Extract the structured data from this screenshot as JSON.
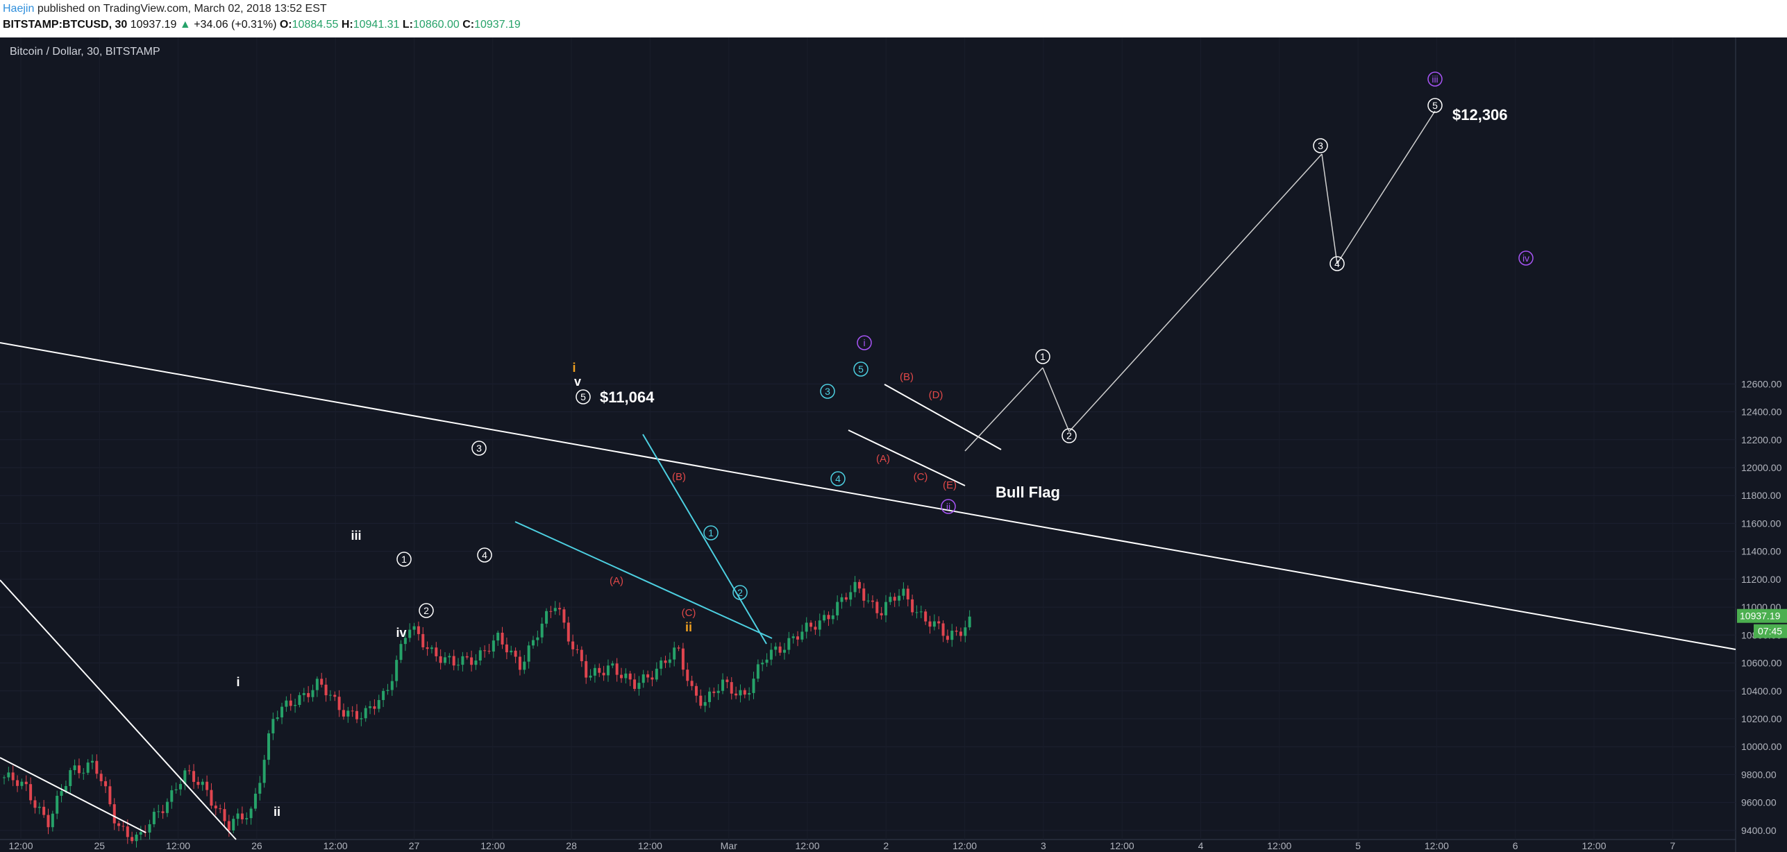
{
  "header": {
    "author": "Haejin",
    "published_text": "published on TradingView.com, March 02, 2018 13:52 EST",
    "symbol": "BITSTAMP:BTCUSD, 30",
    "last": "10937.19",
    "change_arrow": "▲",
    "change": "+34.06 (+0.31%)",
    "open_label": "O:",
    "open": "10884.55",
    "high_label": "H:",
    "high": "10941.31",
    "low_label": "L:",
    "low": "10860.00",
    "close_label": "C:",
    "close": "10937.19"
  },
  "chart_data": {
    "type": "candlestick",
    "title": "Bitcoin / Dollar, 30, BITSTAMP",
    "y_axis": {
      "ticks": [
        "12600.00",
        "12400.00",
        "12200.00",
        "12000.00",
        "11800.00",
        "11600.00",
        "11400.00",
        "11200.00",
        "11000.00",
        "10800.00",
        "10600.00",
        "10400.00",
        "10200.00",
        "10000.00",
        "9800.00",
        "9600.00",
        "9400.00"
      ],
      "range": [
        9270,
        12710
      ]
    },
    "x_axis": {
      "ticks": [
        "12:00",
        "25",
        "12:00",
        "26",
        "12:00",
        "27",
        "12:00",
        "28",
        "12:00",
        "Mar",
        "12:00",
        "2",
        "12:00",
        "3",
        "12:00",
        "4",
        "12:00",
        "5",
        "12:00",
        "6",
        "12:00",
        "7"
      ]
    },
    "last_price": "10937.19",
    "countdown": "07:45",
    "price_path": [
      [
        0,
        9780
      ],
      [
        0.5,
        9700
      ],
      [
        1,
        9450
      ],
      [
        1.5,
        9840
      ],
      [
        2,
        9880
      ],
      [
        2.5,
        9450
      ],
      [
        3,
        9330
      ],
      [
        3.5,
        9560
      ],
      [
        4,
        9800
      ],
      [
        4.5,
        9700
      ],
      [
        5,
        9420
      ],
      [
        5.5,
        9540
      ],
      [
        6,
        10200
      ],
      [
        6.5,
        10350
      ],
      [
        7,
        10440
      ],
      [
        7.5,
        10280
      ],
      [
        8,
        10200
      ],
      [
        8.5,
        10400
      ],
      [
        9,
        10850
      ],
      [
        9.5,
        10700
      ],
      [
        10,
        10580
      ],
      [
        10.5,
        10650
      ],
      [
        11,
        10760
      ],
      [
        11.5,
        10600
      ],
      [
        12,
        10870
      ],
      [
        12.3,
        11050
      ],
      [
        12.5,
        10850
      ],
      [
        13,
        10480
      ],
      [
        13.5,
        10600
      ],
      [
        14,
        10420
      ],
      [
        14.5,
        10560
      ],
      [
        15,
        10680
      ],
      [
        15.3,
        10420
      ],
      [
        15.6,
        10320
      ],
      [
        16,
        10440
      ],
      [
        16.5,
        10380
      ],
      [
        17,
        10650
      ],
      [
        17.5,
        10770
      ],
      [
        18,
        10850
      ],
      [
        18.5,
        11000
      ],
      [
        19,
        11140
      ],
      [
        19.5,
        10970
      ],
      [
        20,
        11100
      ],
      [
        20.5,
        10920
      ],
      [
        21,
        10780
      ],
      [
        21.5,
        10900
      ]
    ],
    "annotations": {
      "price_targets": [
        "$11,064",
        "$12,306"
      ],
      "pattern_label": "Bull Flag",
      "wave_labels_white": [
        "i",
        "ii",
        "iii",
        "iv",
        "v"
      ],
      "wave_labels_orange": [
        "i",
        "ii"
      ],
      "wave_labels_purple": [
        "i",
        "ii",
        "iii",
        "iv"
      ],
      "circled_numbers": [
        "1",
        "2",
        "3",
        "4",
        "5"
      ],
      "corrective_labels": [
        "(A)",
        "(B)",
        "(C)",
        "(D)",
        "(E)"
      ]
    },
    "colors": {
      "background": "#131722",
      "up_candle": "#26a269",
      "down_candle": "#e0454f",
      "trendline": "#ffffff",
      "cyan_line": "#4dd0e1",
      "purple": "#a855f7",
      "orange": "#f0a020",
      "red_label": "#e04848",
      "last_price_tag": "#4caf50"
    }
  }
}
